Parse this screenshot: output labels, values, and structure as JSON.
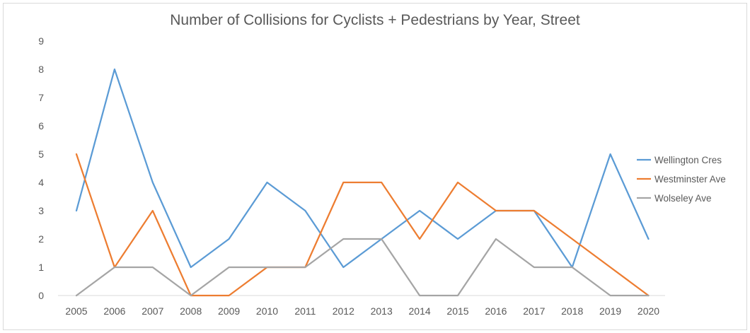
{
  "chart_data": {
    "type": "line",
    "title": "Number of Collisions for Cyclists + Pedestrians by Year, Street",
    "xlabel": "",
    "ylabel": "",
    "x": [
      "2005",
      "2006",
      "2007",
      "2008",
      "2009",
      "2010",
      "2011",
      "2012",
      "2013",
      "2014",
      "2015",
      "2016",
      "2017",
      "2018",
      "2019",
      "2020"
    ],
    "ylim": [
      0,
      9
    ],
    "yticks": [
      "0",
      "1",
      "2",
      "3",
      "4",
      "5",
      "6",
      "7",
      "8",
      "9"
    ],
    "grid": false,
    "legend_position": "right",
    "series": [
      {
        "name": "Wellington Cres",
        "color": "#5b9bd5",
        "values": [
          3,
          8,
          4,
          1,
          2,
          4,
          3,
          1,
          2,
          3,
          2,
          3,
          3,
          1,
          5,
          2
        ]
      },
      {
        "name": "Westminster Ave",
        "color": "#ed7d31",
        "values": [
          5,
          1,
          3,
          0,
          0,
          1,
          1,
          4,
          4,
          2,
          4,
          3,
          3,
          2,
          1,
          0
        ]
      },
      {
        "name": "Wolseley Ave",
        "color": "#a5a5a5",
        "values": [
          0,
          1,
          1,
          0,
          1,
          1,
          1,
          2,
          2,
          0,
          0,
          2,
          1,
          1,
          0,
          0
        ]
      }
    ]
  }
}
